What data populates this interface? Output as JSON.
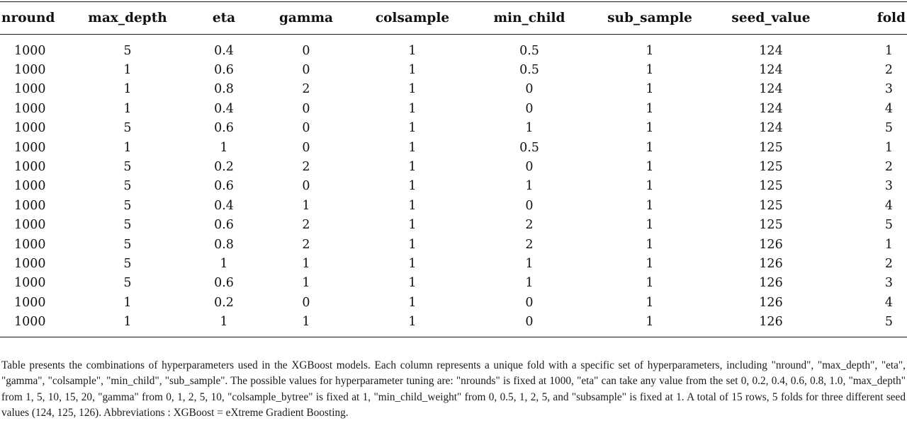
{
  "table": {
    "headers": [
      "nround",
      "max_depth",
      "eta",
      "gamma",
      "colsample",
      "min_child",
      "sub_sample",
      "seed_value",
      "fold"
    ],
    "rows": [
      [
        "1000",
        "5",
        "0.4",
        "0",
        "1",
        "0.5",
        "1",
        "124",
        "1"
      ],
      [
        "1000",
        "1",
        "0.6",
        "0",
        "1",
        "0.5",
        "1",
        "124",
        "2"
      ],
      [
        "1000",
        "1",
        "0.8",
        "2",
        "1",
        "0",
        "1",
        "124",
        "3"
      ],
      [
        "1000",
        "1",
        "0.4",
        "0",
        "1",
        "0",
        "1",
        "124",
        "4"
      ],
      [
        "1000",
        "5",
        "0.6",
        "0",
        "1",
        "1",
        "1",
        "124",
        "5"
      ],
      [
        "1000",
        "1",
        "1",
        "0",
        "1",
        "0.5",
        "1",
        "125",
        "1"
      ],
      [
        "1000",
        "5",
        "0.2",
        "2",
        "1",
        "0",
        "1",
        "125",
        "2"
      ],
      [
        "1000",
        "5",
        "0.6",
        "0",
        "1",
        "1",
        "1",
        "125",
        "3"
      ],
      [
        "1000",
        "5",
        "0.4",
        "1",
        "1",
        "0",
        "1",
        "125",
        "4"
      ],
      [
        "1000",
        "5",
        "0.6",
        "2",
        "1",
        "2",
        "1",
        "125",
        "5"
      ],
      [
        "1000",
        "5",
        "0.8",
        "2",
        "1",
        "2",
        "1",
        "126",
        "1"
      ],
      [
        "1000",
        "5",
        "1",
        "1",
        "1",
        "1",
        "1",
        "126",
        "2"
      ],
      [
        "1000",
        "5",
        "0.6",
        "1",
        "1",
        "1",
        "1",
        "126",
        "3"
      ],
      [
        "1000",
        "1",
        "0.2",
        "0",
        "1",
        "0",
        "1",
        "126",
        "4"
      ],
      [
        "1000",
        "1",
        "1",
        "1",
        "1",
        "0",
        "1",
        "126",
        "5"
      ]
    ]
  },
  "caption": "Table presents the combinations of hyperparameters used in the XGBoost models. Each column represents a unique fold with a specific set of hyperparameters, including \"nround\", \"max_depth\", \"eta\", \"gamma\", \"colsample\", \"min_child\", \"sub_sample\". The possible values for hyperparameter tuning are: \"nrounds\" is fixed at 1000, \"eta\" can take any value from the set 0, 0.2, 0.4, 0.6, 0.8, 1.0, \"max_depth\" from 1, 5, 10, 15, 20, \"gamma\" from 0, 1, 2, 5, 10, \"colsample_bytree\" is fixed at 1, \"min_child_weight\" from 0, 0.5, 1, 2, 5, and \"subsample\" is fixed at 1. A total of 15 rows, 5 folds for three different seed values (124, 125, 126). Abbreviations : XGBoost = eXtreme Gradient Boosting."
}
